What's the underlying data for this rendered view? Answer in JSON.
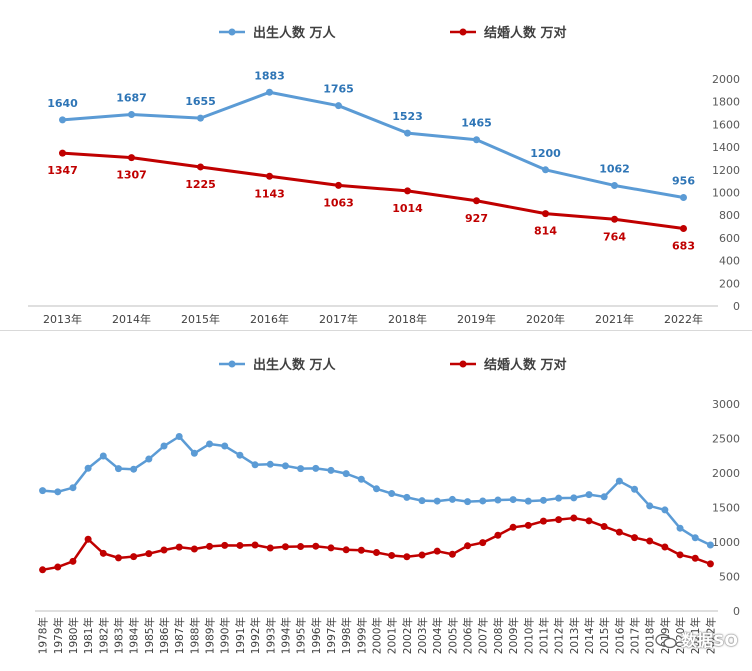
{
  "chart_data": [
    {
      "type": "line",
      "title": "",
      "xlabel": "",
      "ylabel": "",
      "ylim": [
        0,
        2000
      ],
      "yticks": [
        0,
        200,
        400,
        600,
        800,
        1000,
        1200,
        1400,
        1600,
        1800,
        2000
      ],
      "legend_position": "top",
      "grid": false,
      "categories": [
        "2013年",
        "2014年",
        "2015年",
        "2016年",
        "2017年",
        "2018年",
        "2019年",
        "2020年",
        "2021年",
        "2022年"
      ],
      "series": [
        {
          "name": "出生人数 万人",
          "color": "#5b9bd5",
          "label_color": "#2e75b6",
          "values": [
            1640,
            1687,
            1655,
            1883,
            1765,
            1523,
            1465,
            1200,
            1062,
            956
          ]
        },
        {
          "name": "结婚人数 万对",
          "color": "#c00000",
          "label_color": "#c00000",
          "values": [
            1347,
            1307,
            1225,
            1143,
            1063,
            1014,
            927,
            814,
            764,
            683
          ]
        }
      ]
    },
    {
      "type": "line",
      "title": "",
      "xlabel": "",
      "ylabel": "",
      "ylim": [
        0,
        3000
      ],
      "yticks": [
        0,
        500,
        1000,
        1500,
        2000,
        2500,
        3000
      ],
      "legend_position": "top",
      "grid": false,
      "categories": [
        "1978年",
        "1979年",
        "1980年",
        "1981年",
        "1982年",
        "1983年",
        "1984年",
        "1985年",
        "1986年",
        "1987年",
        "1988年",
        "1989年",
        "1990年",
        "1991年",
        "1992年",
        "1993年",
        "1994年",
        "1995年",
        "1996年",
        "1997年",
        "1998年",
        "1999年",
        "2000年",
        "2001年",
        "2002年",
        "2003年",
        "2004年",
        "2005年",
        "2006年",
        "2007年",
        "2008年",
        "2009年",
        "2010年",
        "2011年",
        "2012年",
        "2013年",
        "2014年",
        "2015年",
        "2016年",
        "2017年",
        "2018年",
        "2019年",
        "2020年",
        "2021年",
        "2022年"
      ],
      "series": [
        {
          "name": "出生人数 万人",
          "color": "#5b9bd5",
          "values": [
            1745,
            1727,
            1787,
            2069,
            2246,
            2063,
            2055,
            2202,
            2391,
            2529,
            2286,
            2421,
            2391,
            2258,
            2119,
            2126,
            2104,
            2063,
            2067,
            2038,
            1991,
            1909,
            1771,
            1702,
            1647,
            1599,
            1593,
            1617,
            1585,
            1595,
            1608,
            1615,
            1592,
            1604,
            1635,
            1640,
            1687,
            1655,
            1883,
            1765,
            1523,
            1465,
            1200,
            1062,
            956
          ]
        },
        {
          "name": "结婚人数 万对",
          "color": "#c00000",
          "values": [
            597,
            637,
            720,
            1040,
            836,
            770,
            788,
            831,
            884,
            926,
            899,
            937,
            951,
            950,
            957,
            913,
            932,
            934,
            939,
            914,
            887,
            880,
            848,
            805,
            786,
            811,
            867,
            823,
            945,
            991,
            1098,
            1213,
            1241,
            1302,
            1324,
            1347,
            1307,
            1225,
            1143,
            1063,
            1014,
            927,
            814,
            764,
            683
          ]
        }
      ]
    }
  ],
  "watermark": {
    "text": "数据SO",
    "logo": "wechat-icon"
  }
}
